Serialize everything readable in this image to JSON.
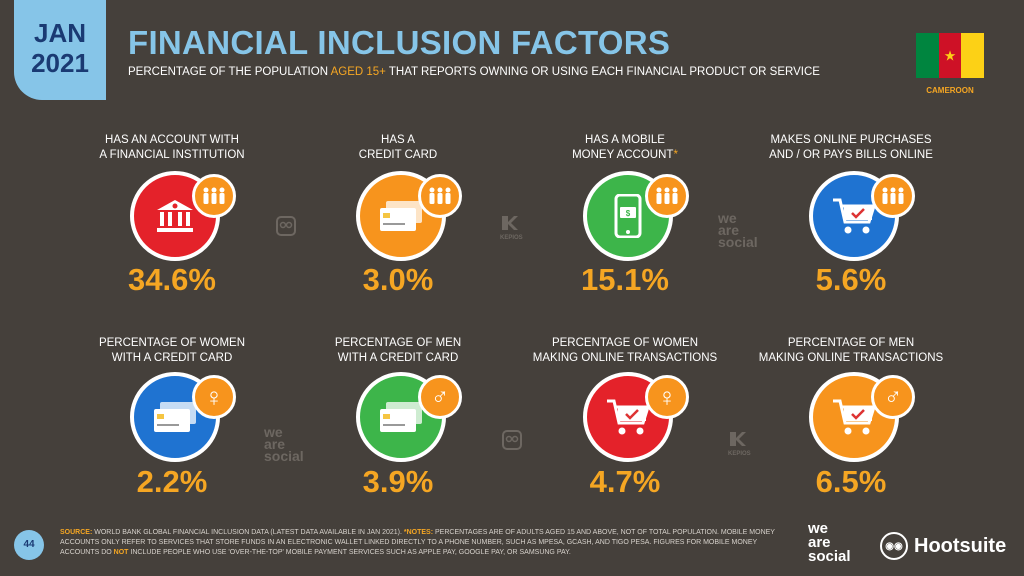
{
  "header": {
    "month": "JAN",
    "year": "2021",
    "title": "FINANCIAL INCLUSION FACTORS",
    "subtitle_pre": "PERCENTAGE OF THE POPULATION ",
    "subtitle_highlight": "AGED 15+",
    "subtitle_post": " THAT REPORTS OWNING OR USING EACH FINANCIAL PRODUCT OR SERVICE",
    "country": "CAMEROON"
  },
  "colors": {
    "background": "#45403b",
    "accent_blue": "#86c5e8",
    "accent_orange": "#f5a623",
    "red": "#e4222a",
    "orange": "#f7941d",
    "green": "#3db54a",
    "blue": "#1f73d1"
  },
  "row1": [
    {
      "label1": "HAS AN ACCOUNT WITH",
      "label2": "A FINANCIAL INSTITUTION",
      "value": "34.6%",
      "color": "#e4222a",
      "icon": "bank-icon",
      "badge": "people-icon"
    },
    {
      "label1": "HAS A",
      "label2": "CREDIT CARD",
      "value": "3.0%",
      "color": "#f7941d",
      "icon": "credit-card-icon",
      "badge": "people-icon"
    },
    {
      "label1": "HAS A MOBILE",
      "label2": "MONEY ACCOUNT",
      "asterisk": "*",
      "value": "15.1%",
      "color": "#3db54a",
      "icon": "mobile-money-icon",
      "badge": "people-icon"
    },
    {
      "label1": "MAKES ONLINE PURCHASES",
      "label2": "AND / OR PAYS BILLS ONLINE",
      "value": "5.6%",
      "color": "#1f73d1",
      "icon": "shopping-cart-icon",
      "badge": "people-icon"
    }
  ],
  "row2": [
    {
      "label1": "PERCENTAGE OF WOMEN",
      "label2": "WITH A CREDIT CARD",
      "value": "2.2%",
      "color": "#1f73d1",
      "icon": "credit-card-icon",
      "badge": "female-icon"
    },
    {
      "label1": "PERCENTAGE OF MEN",
      "label2": "WITH A CREDIT CARD",
      "value": "3.9%",
      "color": "#3db54a",
      "icon": "credit-card-icon",
      "badge": "male-icon"
    },
    {
      "label1": "PERCENTAGE OF WOMEN",
      "label2": "MAKING ONLINE TRANSACTIONS",
      "value": "4.7%",
      "color": "#e4222a",
      "icon": "shopping-cart-icon",
      "badge": "female-icon"
    },
    {
      "label1": "PERCENTAGE OF MEN",
      "label2": "MAKING ONLINE TRANSACTIONS",
      "value": "6.5%",
      "color": "#f7941d",
      "icon": "shopping-cart-icon",
      "badge": "male-icon"
    }
  ],
  "watermarks": {
    "we": "we",
    "are": "are",
    "social": "social",
    "kepios": "KEPIOS"
  },
  "footer": {
    "page": "44",
    "source_label": "SOURCE:",
    "source_text": " WORLD BANK GLOBAL FINANCIAL INCLUSION DATA (LATEST DATA AVAILABLE IN JAN 2021). ",
    "notes_label": "*NOTES:",
    "notes_text_1": " PERCENTAGES ARE OF ADULTS AGED 15 AND ABOVE, NOT OF TOTAL POPULATION. MOBILE MONEY ACCOUNTS ONLY REFER TO SERVICES THAT STORE FUNDS IN AN ELECTRONIC WALLET LINKED DIRECTLY TO A PHONE NUMBER, SUCH AS MPESA, GCASH, AND TIGO PESA. FIGURES FOR MOBILE MONEY ACCOUNTS DO ",
    "not": "NOT",
    "notes_text_2": " INCLUDE PEOPLE WHO USE 'OVER-THE-TOP' MOBILE PAYMENT SERVICES SUCH AS APPLE PAY, GOOGLE PAY, OR SAMSUNG PAY.",
    "brand_we": "we",
    "brand_are": "are",
    "brand_social": "social",
    "brand_hootsuite": "Hootsuite"
  }
}
